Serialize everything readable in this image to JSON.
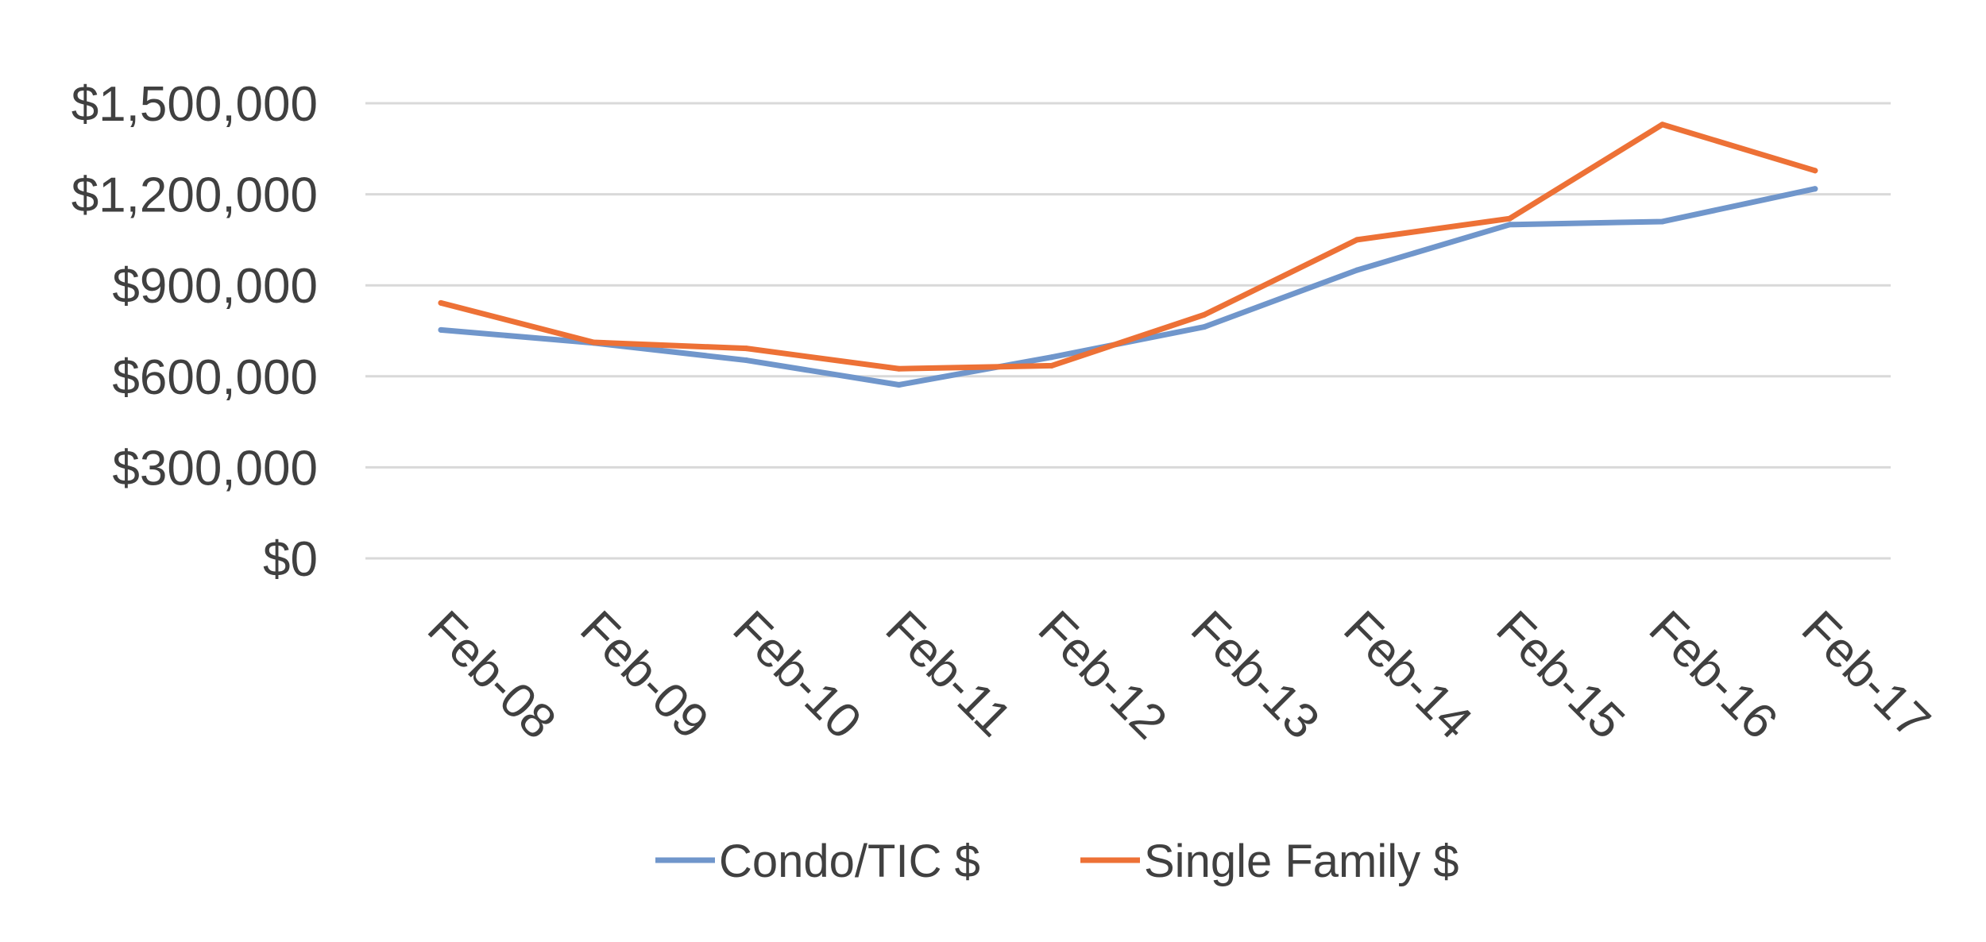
{
  "chart_data": {
    "type": "line",
    "title": "",
    "xlabel": "",
    "ylabel": "",
    "categories": [
      "Feb-08",
      "Feb-09",
      "Feb-10",
      "Feb-11",
      "Feb-12",
      "Feb-13",
      "Feb-14",
      "Feb-15",
      "Feb-16",
      "Feb-17"
    ],
    "ylim": [
      0,
      1500000
    ],
    "yticks": [
      0,
      300000,
      600000,
      900000,
      1200000,
      1500000
    ],
    "ytick_labels": [
      "$0",
      "$300,000",
      "$600,000",
      "$900,000",
      "$1,200,000",
      "$1,500,000"
    ],
    "grid": "horizontal",
    "legend_position": "bottom",
    "series": [
      {
        "name": "Condo/TIC $",
        "color": "#7096CB",
        "values": [
          753000,
          710000,
          653000,
          572000,
          663000,
          763000,
          950000,
          1100000,
          1110000,
          1218000
        ]
      },
      {
        "name": "Single Family $",
        "color": "#ED7136",
        "values": [
          842000,
          712000,
          692000,
          625000,
          635000,
          803000,
          1050000,
          1120000,
          1430000,
          1278000
        ]
      }
    ]
  }
}
